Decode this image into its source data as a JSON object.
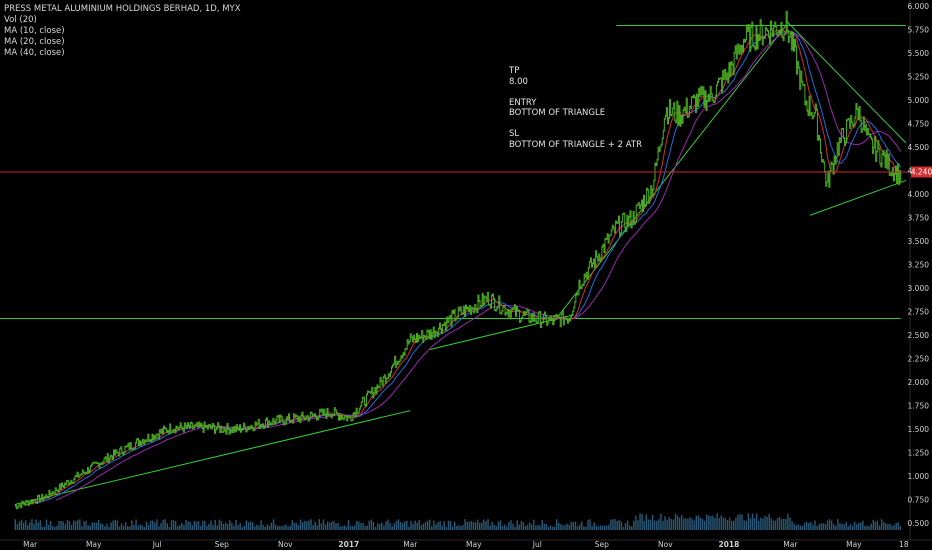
{
  "legend": {
    "title": "PRESS METAL ALUMINIUM HOLDINGS BERHAD, 1D, MYX",
    "vol": "Vol (20)",
    "ma10": "MA (10, close)",
    "ma20": "MA (20, close)",
    "ma40": "MA (40, close)"
  },
  "annotation": {
    "tp_label": "TP",
    "tp_value": "8.00",
    "entry_label": "ENTRY",
    "entry_value": "BOTTOM OF TRIANGLE",
    "sl_label": "SL",
    "sl_value": "BOTTOM OF TRIANGLE + 2 ATR"
  },
  "colors": {
    "background": "#000000",
    "price": "#4caf22",
    "ma10": "#d32f2f",
    "ma20": "#1e6fe0",
    "ma40": "#9c27b0",
    "trendline": "#33cc33",
    "last_price_line": "#c62828",
    "last_price_badge": "#d32f2f",
    "volume": "#2b5a78"
  },
  "chart_data": {
    "type": "line",
    "title": "PRESS METAL ALUMINIUM HOLDINGS BERHAD, 1D, MYX",
    "y_axis": {
      "ticks": [
        "6.000",
        "5.750",
        "5.500",
        "5.250",
        "5.000",
        "4.750",
        "4.500",
        "4.250",
        "4.000",
        "3.750",
        "3.500",
        "3.250",
        "3.000",
        "2.750",
        "2.500",
        "2.250",
        "2.000",
        "1.750",
        "1.500",
        "1.250",
        "1.000",
        "0.750",
        "0.500"
      ],
      "ylim": [
        0.45,
        6.05
      ],
      "position": "right"
    },
    "x_axis": {
      "ticks": [
        "Mar",
        "May",
        "Jul",
        "Sep",
        "Nov",
        "2017",
        "Mar",
        "May",
        "Jul",
        "Sep",
        "Nov",
        "2018",
        "Mar",
        "May",
        "18"
      ],
      "bold": [
        "2017",
        "2018"
      ]
    },
    "last_price": "4.240",
    "price_series": {
      "name": "Price",
      "x": [
        "2016-02-15",
        "2016-03-15",
        "2016-04-15",
        "2016-05-15",
        "2016-06-15",
        "2016-07-15",
        "2016-08-15",
        "2016-09-15",
        "2016-10-15",
        "2016-11-15",
        "2016-12-15",
        "2017-01-01",
        "2017-02-01",
        "2017-03-01",
        "2017-03-20",
        "2017-04-15",
        "2017-05-15",
        "2017-06-01",
        "2017-06-20",
        "2017-07-15",
        "2017-08-01",
        "2017-08-10",
        "2017-08-25",
        "2017-09-15",
        "2017-10-01",
        "2017-10-20",
        "2017-11-01",
        "2017-11-15",
        "2017-12-01",
        "2017-12-15",
        "2018-01-01",
        "2018-01-15",
        "2018-02-01",
        "2018-02-15",
        "2018-02-25",
        "2018-03-05",
        "2018-03-15",
        "2018-03-25",
        "2018-04-05",
        "2018-04-15",
        "2018-04-25",
        "2018-05-05",
        "2018-05-15",
        "2018-05-25",
        "2018-06-05",
        "2018-06-15"
      ],
      "y": [
        0.68,
        0.78,
        1.0,
        1.2,
        1.38,
        1.52,
        1.52,
        1.5,
        1.58,
        1.62,
        1.68,
        1.62,
        2.0,
        2.45,
        2.52,
        2.72,
        2.9,
        2.78,
        2.7,
        2.65,
        2.7,
        3.05,
        3.3,
        3.65,
        3.75,
        4.1,
        4.9,
        4.85,
        5.0,
        5.05,
        5.3,
        5.65,
        5.72,
        5.78,
        5.8,
        5.5,
        5.0,
        4.85,
        4.1,
        4.5,
        4.7,
        4.9,
        4.55,
        4.45,
        4.3,
        4.2
      ]
    },
    "trendlines": [
      {
        "name": "support-2016",
        "x": [
          "2016-02-15",
          "2017-03-01"
        ],
        "y": [
          0.7,
          1.7
        ]
      },
      {
        "name": "support-2017",
        "x": [
          "2017-03-20",
          "2017-08-05"
        ],
        "y": [
          2.35,
          2.72
        ]
      },
      {
        "name": "support-2017b",
        "x": [
          "2017-07-15",
          "2018-02-25"
        ],
        "y": [
          2.62,
          5.8
        ]
      },
      {
        "name": "resistance-horizontal-2.68",
        "x": [
          "2016-02-01",
          "2018-06-15"
        ],
        "y": [
          2.68,
          2.68
        ]
      },
      {
        "name": "resistance-horizontal-5.80",
        "x": [
          "2017-09-15",
          "2018-06-20"
        ],
        "y": [
          5.8,
          5.8
        ]
      },
      {
        "name": "triangle-upper",
        "x": [
          "2018-02-25",
          "2018-06-20"
        ],
        "y": [
          5.85,
          4.55
        ]
      },
      {
        "name": "triangle-lower",
        "x": [
          "2018-03-20",
          "2018-06-20"
        ],
        "y": [
          3.78,
          4.15
        ]
      }
    ]
  }
}
